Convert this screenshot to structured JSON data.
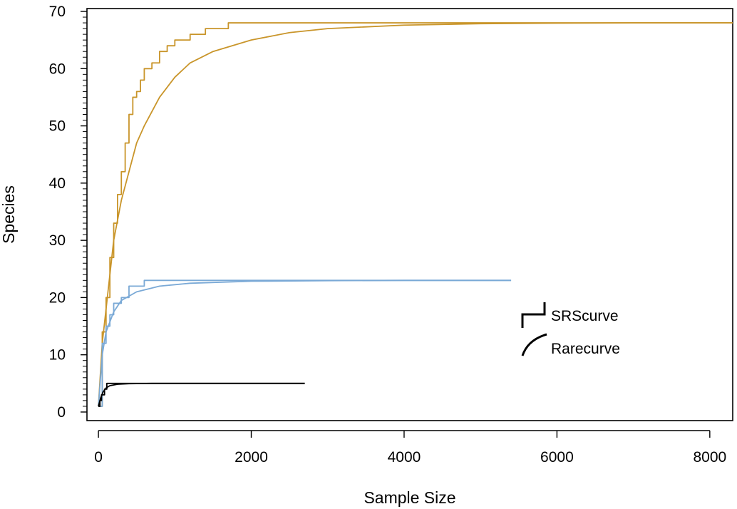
{
  "chart_data": {
    "type": "line",
    "xlabel": "Sample Size",
    "ylabel": "Species",
    "xlim": [
      -150,
      8300
    ],
    "ylim": [
      -1.5,
      70.5
    ],
    "x_ticks": [
      0,
      2000,
      4000,
      6000,
      8000
    ],
    "x_tick_labels": [
      "0",
      "2000",
      "4000",
      "6000",
      "8000"
    ],
    "y_ticks": [
      0,
      10,
      20,
      30,
      40,
      50,
      60,
      70
    ],
    "y_tick_labels": [
      "0",
      "10",
      "20",
      "30",
      "40",
      "50",
      "60",
      "70"
    ],
    "y_minor_step": 1,
    "grid": false,
    "legend": {
      "position": "lower-right",
      "entries": [
        {
          "label": "SRScurve",
          "style": "step"
        },
        {
          "label": "Rarecurve",
          "style": "curve"
        }
      ]
    },
    "series": [
      {
        "kind": "rarecurve",
        "color": "#c9952a",
        "points": [
          [
            0,
            1
          ],
          [
            50,
            12
          ],
          [
            100,
            18
          ],
          [
            150,
            24
          ],
          [
            200,
            30
          ],
          [
            300,
            37
          ],
          [
            400,
            42
          ],
          [
            500,
            47
          ],
          [
            600,
            50
          ],
          [
            800,
            55
          ],
          [
            1000,
            58.5
          ],
          [
            1200,
            61
          ],
          [
            1500,
            63
          ],
          [
            2000,
            65
          ],
          [
            2500,
            66.3
          ],
          [
            3000,
            67
          ],
          [
            4000,
            67.6
          ],
          [
            5000,
            67.85
          ],
          [
            6000,
            67.95
          ],
          [
            7000,
            68
          ],
          [
            8300,
            68
          ]
        ]
      },
      {
        "kind": "srscurve",
        "color": "#c9952a",
        "points": [
          [
            0,
            1
          ],
          [
            50,
            14
          ],
          [
            100,
            20
          ],
          [
            150,
            27
          ],
          [
            200,
            33
          ],
          [
            250,
            38
          ],
          [
            300,
            42
          ],
          [
            350,
            47
          ],
          [
            400,
            52
          ],
          [
            450,
            55
          ],
          [
            500,
            56
          ],
          [
            550,
            58
          ],
          [
            600,
            60
          ],
          [
            700,
            61
          ],
          [
            800,
            63
          ],
          [
            900,
            64
          ],
          [
            1000,
            65
          ],
          [
            1200,
            66
          ],
          [
            1400,
            67
          ],
          [
            1700,
            68
          ],
          [
            2200,
            68
          ],
          [
            8300,
            68
          ]
        ]
      },
      {
        "kind": "rarecurve",
        "color": "#7aa9d6",
        "points": [
          [
            0,
            1
          ],
          [
            50,
            10
          ],
          [
            100,
            14
          ],
          [
            200,
            17.5
          ],
          [
            300,
            19.5
          ],
          [
            500,
            21
          ],
          [
            800,
            22
          ],
          [
            1200,
            22.5
          ],
          [
            2000,
            22.85
          ],
          [
            3000,
            22.95
          ],
          [
            4000,
            23
          ],
          [
            5400,
            23
          ]
        ]
      },
      {
        "kind": "srscurve",
        "color": "#7aa9d6",
        "points": [
          [
            0,
            1
          ],
          [
            50,
            12
          ],
          [
            100,
            15
          ],
          [
            150,
            17
          ],
          [
            200,
            19
          ],
          [
            300,
            20
          ],
          [
            400,
            22
          ],
          [
            500,
            22
          ],
          [
            600,
            23
          ],
          [
            5400,
            23
          ]
        ]
      },
      {
        "kind": "rarecurve",
        "color": "#000000",
        "points": [
          [
            0,
            1
          ],
          [
            30,
            2.5
          ],
          [
            60,
            3.5
          ],
          [
            100,
            4.2
          ],
          [
            150,
            4.6
          ],
          [
            250,
            4.85
          ],
          [
            400,
            4.95
          ],
          [
            700,
            5
          ],
          [
            2700,
            5
          ]
        ]
      },
      {
        "kind": "srscurve",
        "color": "#000000",
        "points": [
          [
            0,
            1
          ],
          [
            20,
            2
          ],
          [
            40,
            3
          ],
          [
            80,
            4
          ],
          [
            110,
            5
          ],
          [
            2700,
            5
          ]
        ]
      }
    ]
  }
}
